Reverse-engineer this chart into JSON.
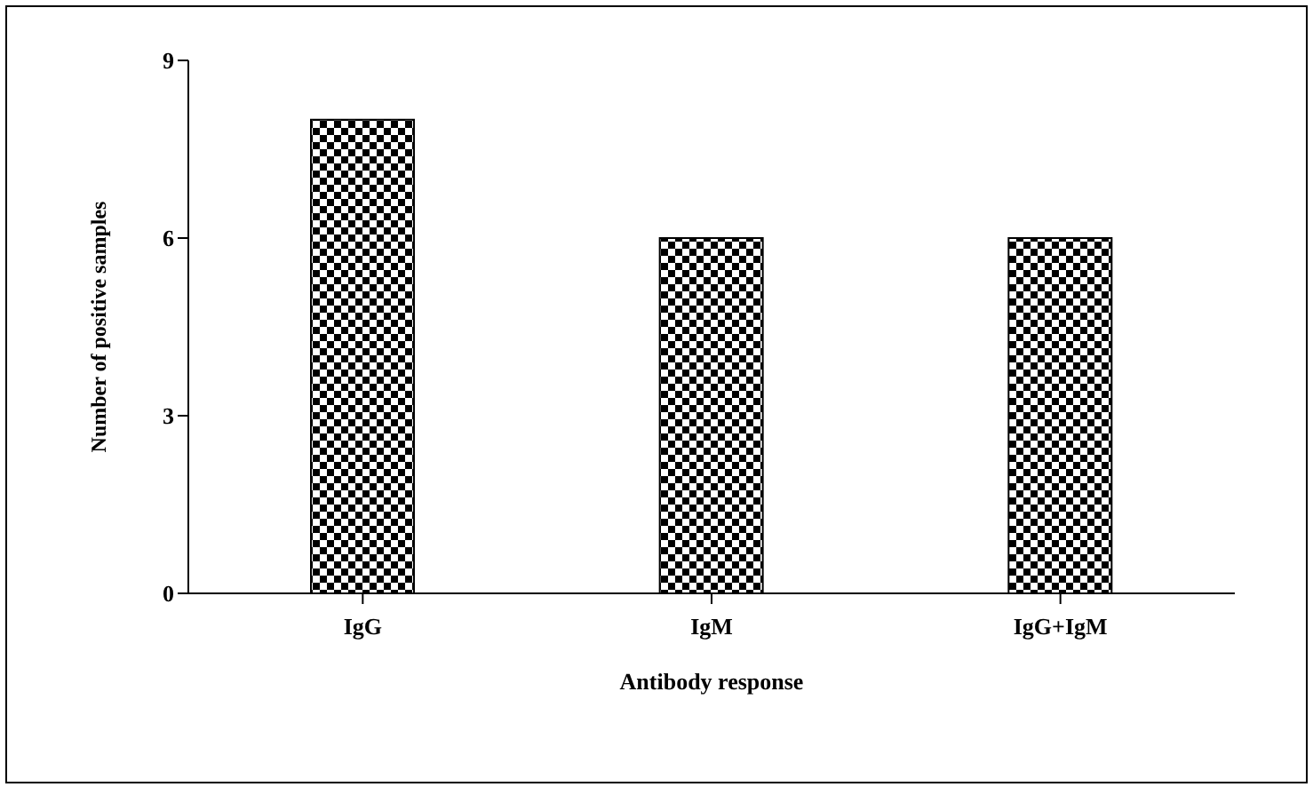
{
  "chart_data": {
    "type": "bar",
    "xlabel": "Antibody response",
    "ylabel": "Number of  positive samples",
    "categories": [
      "IgG",
      "IgM",
      "IgG+IgM"
    ],
    "values": [
      8,
      6,
      6
    ],
    "color": "#000000",
    "ylim": [
      0,
      9
    ],
    "yticks": [
      0,
      3,
      6,
      9
    ],
    "grid": false,
    "legend": false
  }
}
